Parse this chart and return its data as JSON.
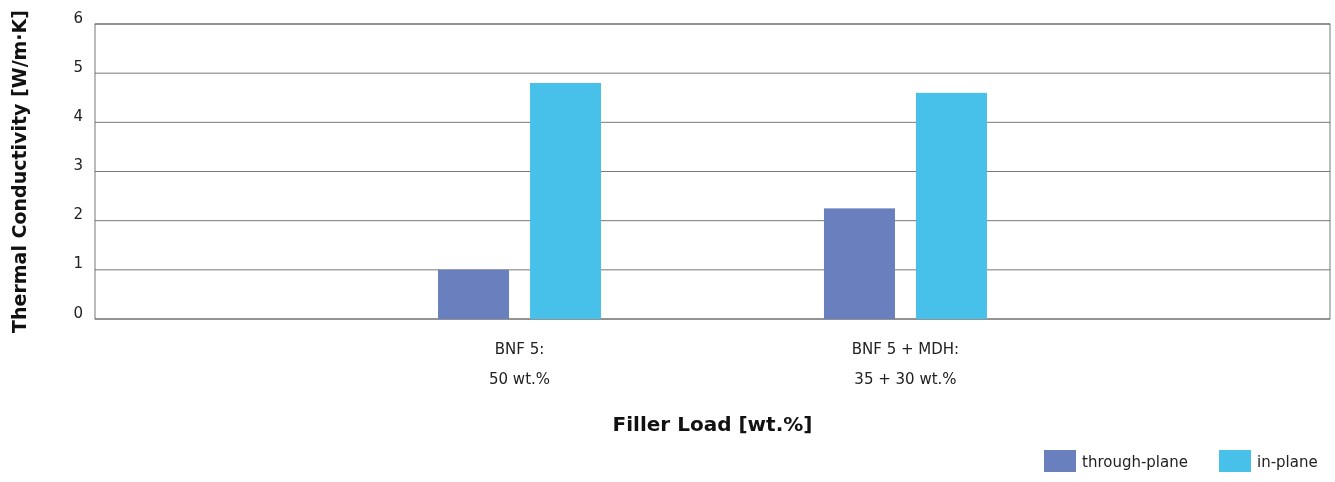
{
  "chart_data": {
    "type": "bar",
    "xlabel": "Filler Load [wt.%]",
    "ylabel": "Thermal Conductivity [W/m·K]",
    "categories": [
      "BNF 5:\n50 wt.%",
      "BNF 5 + MDH:\n35 + 30 wt.%"
    ],
    "series": [
      {
        "name": "through-plane",
        "color": "#6a7fbd",
        "values": [
          1.0,
          2.25
        ]
      },
      {
        "name": "in-plane",
        "color": "#47c0ea",
        "values": [
          4.8,
          4.6
        ]
      }
    ],
    "ylim": [
      0,
      6
    ],
    "yticks": [
      0,
      1,
      2,
      3,
      4,
      5,
      6
    ],
    "grid": "y",
    "legend": "bottom right"
  }
}
